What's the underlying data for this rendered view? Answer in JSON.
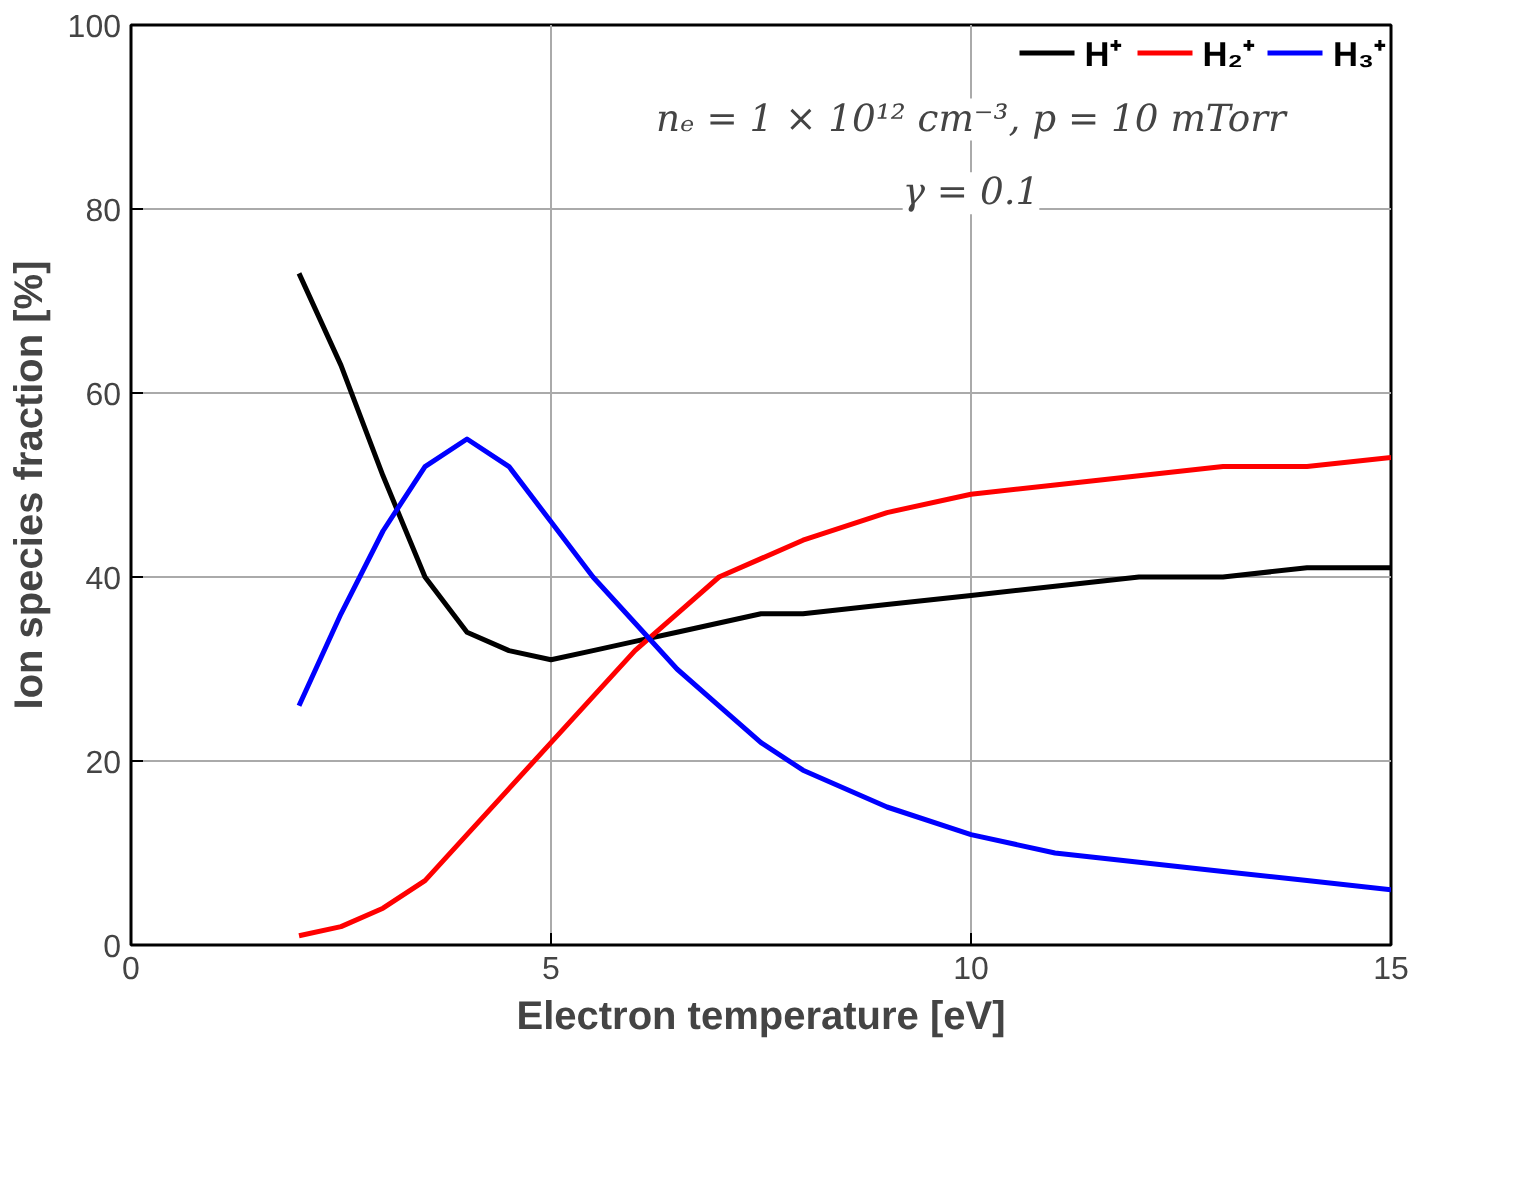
{
  "chart_data": {
    "type": "line",
    "xlabel": "Electron temperature [eV]",
    "ylabel": "Ion species fraction [%]",
    "annotations": [
      "nₑ = 1 × 10¹² cm⁻³, p = 10 mTorr",
      "γ = 0.1"
    ],
    "x": [
      2,
      2.5,
      3,
      3.5,
      4,
      4.5,
      5,
      5.5,
      6,
      6.5,
      7,
      7.5,
      8,
      9,
      10,
      11,
      12,
      13,
      14,
      15
    ],
    "series": [
      {
        "name": "H⁺",
        "color": "#000000",
        "values": [
          73,
          63,
          51,
          40,
          34,
          32,
          31,
          32,
          33,
          34,
          35,
          36,
          36,
          37,
          38,
          39,
          40,
          40,
          41,
          41
        ]
      },
      {
        "name": "H₂⁺",
        "color": "#ff0000",
        "values": [
          1,
          2,
          4,
          7,
          12,
          17,
          22,
          27,
          32,
          36,
          40,
          42,
          44,
          47,
          49,
          50,
          51,
          52,
          52,
          53
        ]
      },
      {
        "name": "H₃⁺",
        "color": "#0000ff",
        "values": [
          26,
          36,
          45,
          52,
          55,
          52,
          46,
          40,
          35,
          30,
          26,
          22,
          19,
          15,
          12,
          10,
          9,
          8,
          7,
          6
        ]
      }
    ],
    "xlim": [
      0,
      15
    ],
    "ylim": [
      0,
      100
    ],
    "xticks": [
      0,
      5,
      10,
      15
    ],
    "yticks": [
      0,
      20,
      40,
      60,
      80,
      100
    ],
    "grid": true,
    "legend": "top right",
    "marker": "none",
    "line_style": "solid"
  }
}
